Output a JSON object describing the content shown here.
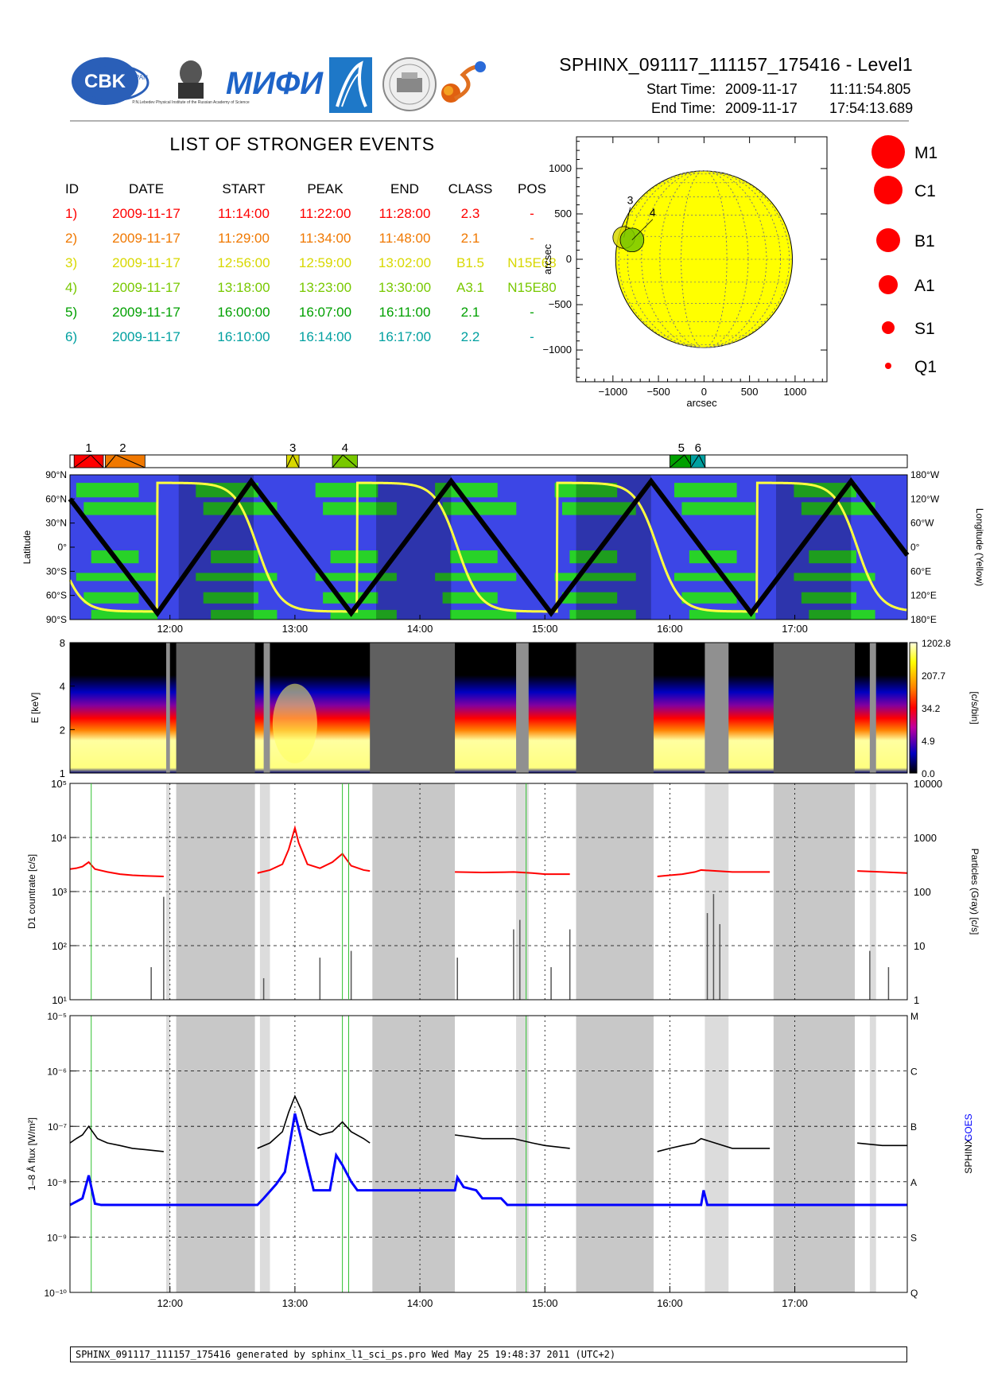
{
  "header": {
    "logos": [
      {
        "name": "cbk-logo",
        "text": "CBK",
        "sub": "PAN"
      },
      {
        "name": "lebedev-logo",
        "text": "P.N.Lebedev Physical Institute of the Russian Academy of Science"
      },
      {
        "name": "mifi-logo",
        "text": "МИФИ"
      },
      {
        "name": "roscosmos-logo",
        "text": ""
      },
      {
        "name": "seal-logo",
        "text": ""
      },
      {
        "name": "sun-swirl-logo",
        "text": ""
      }
    ],
    "title": "SPHINX_091117_111157_175416 - Level1",
    "start_label": "Start Time:",
    "start_date": "2009-11-17",
    "start_time": "11:11:54.805",
    "end_label": "End Time:",
    "end_date": "2009-11-17",
    "end_time": "17:54:13.689"
  },
  "events": {
    "title": "LIST OF STRONGER EVENTS",
    "columns": [
      "ID",
      "DATE",
      "START",
      "PEAK",
      "END",
      "CLASS",
      "POS"
    ],
    "rows": [
      {
        "id": "1)",
        "date": "2009-11-17",
        "start": "11:14:00",
        "peak": "11:22:00",
        "end": "11:28:00",
        "cls": "2.3",
        "pos": "-",
        "color": "#ff0000"
      },
      {
        "id": "2)",
        "date": "2009-11-17",
        "start": "11:29:00",
        "peak": "11:34:00",
        "end": "11:48:00",
        "cls": "2.1",
        "pos": "-",
        "color": "#f07800"
      },
      {
        "id": "3)",
        "date": "2009-11-17",
        "start": "12:56:00",
        "peak": "12:59:00",
        "end": "13:02:00",
        "cls": "B1.5",
        "pos": "N15E68",
        "color": "#d8d800"
      },
      {
        "id": "4)",
        "date": "2009-11-17",
        "start": "13:18:00",
        "peak": "13:23:00",
        "end": "13:30:00",
        "cls": "A3.1",
        "pos": "N15E80",
        "color": "#78c800"
      },
      {
        "id": "5)",
        "date": "2009-11-17",
        "start": "16:00:00",
        "peak": "16:07:00",
        "end": "16:11:00",
        "cls": "2.1",
        "pos": "-",
        "color": "#00a000"
      },
      {
        "id": "6)",
        "date": "2009-11-17",
        "start": "16:10:00",
        "peak": "16:14:00",
        "end": "16:17:00",
        "cls": "2.2",
        "pos": "-",
        "color": "#00a0a0"
      }
    ]
  },
  "class_legend": [
    "M1",
    "C1",
    "B1",
    "A1",
    "S1",
    "Q1"
  ],
  "footer": {
    "text": "SPHINX_091117_111157_175416 generated by sphinx_l1_sci_ps.pro Wed May 25 19:48:37 2011 (UTC+2)"
  },
  "colors": {
    "ocean": "#3c46e6",
    "land": "#28d228",
    "sun_disk": "#ffff00",
    "sphinx_curve": "#000000",
    "goes_curve": "#0000ff",
    "d1_curve": "#ff0000",
    "gap_gray": "#c8c8c8",
    "gap_dark": "#606060"
  },
  "chart_data": [
    {
      "type": "scatter",
      "name": "solar-disk-map",
      "xlabel": "arcsec",
      "ylabel": "arcsec",
      "xlim": [
        -1400,
        1350
      ],
      "ylim": [
        -1350,
        1350
      ],
      "xticks": [
        -1000,
        -500,
        0,
        500,
        1000
      ],
      "yticks": [
        -1000,
        -500,
        0,
        500,
        1000
      ],
      "xtick_labels": [
        "−1000",
        "−500",
        "0",
        "500",
        "1000"
      ],
      "ytick_labels": [
        "−1000",
        "−500",
        "0",
        "500",
        "1000"
      ],
      "sun_radius_arcsec": 970,
      "events": [
        {
          "label": "3",
          "x": -880,
          "y": 240,
          "radius_arcsec": 120,
          "color": "#d8d800"
        },
        {
          "label": "4",
          "x": -860,
          "y": 230,
          "radius_arcsec": 130,
          "color": "#78c800"
        }
      ]
    },
    {
      "type": "table",
      "name": "event-timeline-bar",
      "time_range_utc": [
        11.2,
        17.9
      ],
      "events": [
        {
          "label": "1",
          "start": 11.233,
          "peak": 11.367,
          "end": 11.467,
          "color": "#ff0000"
        },
        {
          "label": "2",
          "start": 11.483,
          "peak": 11.567,
          "end": 11.8,
          "color": "#f07800"
        },
        {
          "label": "3",
          "start": 12.933,
          "peak": 12.983,
          "end": 13.033,
          "color": "#d8d800"
        },
        {
          "label": "4",
          "start": 13.3,
          "peak": 13.383,
          "end": 13.5,
          "color": "#78c800"
        },
        {
          "label": "5",
          "start": 16.0,
          "peak": 16.117,
          "end": 16.183,
          "color": "#00a000"
        },
        {
          "label": "6",
          "start": 16.167,
          "peak": 16.233,
          "end": 16.283,
          "color": "#00a0a0"
        }
      ]
    },
    {
      "type": "line",
      "name": "orbit-track",
      "xlabel": "",
      "ylabel": "Latitude",
      "y2label": "Longitude (Yellow)",
      "x_range_utc": [
        11.2,
        17.9
      ],
      "x_ticks": [
        "12:00",
        "13:00",
        "14:00",
        "15:00",
        "16:00",
        "17:00"
      ],
      "ylim": [
        -90,
        90
      ],
      "y_ticks": [
        "90°S",
        "60°S",
        "30°S",
        "0°",
        "30°N",
        "60°N",
        "90°N"
      ],
      "y2_ticks": [
        "180°E",
        "120°E",
        "60°E",
        "0°",
        "60°W",
        "120°W",
        "180°W"
      ],
      "latitude_turnpoints": {
        "t": [
          11.2,
          11.9,
          12.65,
          13.45,
          14.25,
          15.05,
          15.85,
          16.65,
          17.45,
          17.9
        ],
        "lat": [
          60,
          -82,
          82,
          -82,
          82,
          -82,
          82,
          -82,
          82,
          -10
        ]
      },
      "shadow_intervals": [
        [
          12.07,
          12.67
        ],
        [
          13.65,
          14.25
        ],
        [
          15.25,
          15.85
        ],
        [
          16.85,
          17.45
        ]
      ]
    },
    {
      "type": "heatmap",
      "name": "spectrogram",
      "xlabel": "",
      "ylabel": "E [keV]",
      "colorbar_label": "[c/s/bin]",
      "colorbar_ticks": [
        "0.0",
        "4.9",
        "34.2",
        "207.7",
        "1202.8"
      ],
      "y_ticks": [
        "1",
        "2",
        "4",
        "8"
      ],
      "ylim_kev": [
        1,
        8
      ],
      "data_gaps_utc": [
        [
          11.97,
          12.0
        ],
        [
          12.05,
          12.68
        ],
        [
          12.75,
          12.8
        ],
        [
          13.6,
          14.28
        ],
        [
          14.77,
          14.87
        ],
        [
          15.25,
          15.87
        ],
        [
          16.28,
          16.47
        ],
        [
          16.83,
          17.48
        ],
        [
          17.6,
          17.65
        ]
      ]
    },
    {
      "type": "line",
      "name": "d1-countrate",
      "xlabel": "",
      "ylabel": "D1 countrate [c/s]",
      "y2label": "Particles (Gray) [c/s]",
      "yscale": "log",
      "ylim": [
        10,
        100000
      ],
      "y_ticks": [
        "10¹",
        "10²",
        "10³",
        "10⁴",
        "10⁵"
      ],
      "y2lim": [
        1,
        10000
      ],
      "y2_ticks": [
        "1",
        "10",
        "100",
        "1000",
        "10000"
      ],
      "series": [
        {
          "name": "D1 countrate",
          "color": "#ff0000",
          "x": [
            11.2,
            11.25,
            11.3,
            11.35,
            11.4,
            11.5,
            11.6,
            11.7,
            11.8,
            11.95,
            12.7,
            12.8,
            12.9,
            12.95,
            13.0,
            13.03,
            13.1,
            13.2,
            13.3,
            13.38,
            13.45,
            13.55,
            13.6,
            14.28,
            14.5,
            14.75,
            14.9,
            15.0,
            15.2,
            15.9,
            16.0,
            16.1,
            16.2,
            16.25,
            16.5,
            16.6,
            16.8,
            17.5,
            17.7,
            17.9
          ],
          "y": [
            2600,
            2700,
            2900,
            3500,
            2600,
            2300,
            2100,
            2000,
            1950,
            1900,
            2200,
            2500,
            3200,
            6000,
            15000,
            8000,
            3200,
            2700,
            3500,
            5000,
            3000,
            2500,
            2400,
            2300,
            2250,
            2300,
            2200,
            2100,
            2100,
            1900,
            2000,
            2100,
            2300,
            2500,
            2300,
            2300,
            2300,
            2400,
            2300,
            2200
          ]
        }
      ]
    },
    {
      "type": "line",
      "name": "xray-flux",
      "xlabel": "",
      "ylabel": "1–8 Å flux [W/m²]",
      "yscale": "log",
      "ylim": [
        1e-10,
        1e-05
      ],
      "y_ticks": [
        "10⁻¹⁰",
        "10⁻⁹",
        "10⁻⁸",
        "10⁻⁷",
        "10⁻⁶",
        "10⁻⁵"
      ],
      "class_ticks": [
        "Q",
        "S",
        "A",
        "B",
        "C",
        "M"
      ],
      "x_ticks": [
        "12:00",
        "13:00",
        "14:00",
        "15:00",
        "16:00",
        "17:00"
      ],
      "legend": [
        "SPHINX",
        "GOES"
      ],
      "series": [
        {
          "name": "SPHINX",
          "color": "#000000",
          "x": [
            11.2,
            11.25,
            11.3,
            11.35,
            11.42,
            11.5,
            11.6,
            11.7,
            11.8,
            11.95,
            12.7,
            12.8,
            12.9,
            12.95,
            13.0,
            13.05,
            13.1,
            13.2,
            13.3,
            13.38,
            13.45,
            13.55,
            13.6,
            14.28,
            14.5,
            14.75,
            14.9,
            15.0,
            15.2,
            15.9,
            16.0,
            16.1,
            16.2,
            16.25,
            16.5,
            16.6,
            16.8,
            17.5,
            17.7,
            17.9
          ],
          "y": [
            5e-08,
            6e-08,
            7e-08,
            1e-07,
            6e-08,
            5e-08,
            4.5e-08,
            4e-08,
            3.8e-08,
            3.5e-08,
            4e-08,
            5e-08,
            8e-08,
            1.8e-07,
            3.5e-07,
            2e-07,
            9e-08,
            7e-08,
            8e-08,
            1.2e-07,
            8e-08,
            6e-08,
            5e-08,
            7e-08,
            6e-08,
            6e-08,
            5e-08,
            4.5e-08,
            4e-08,
            3.5e-08,
            4e-08,
            4.5e-08,
            5e-08,
            6e-08,
            4e-08,
            4e-08,
            4e-08,
            5e-08,
            4.5e-08,
            4.5e-08
          ]
        },
        {
          "name": "GOES",
          "color": "#0000ff",
          "x": [
            11.2,
            11.3,
            11.35,
            11.4,
            11.45,
            11.5,
            12.7,
            12.75,
            12.85,
            12.92,
            12.96,
            13.0,
            13.05,
            13.1,
            13.15,
            13.28,
            13.33,
            13.38,
            13.45,
            13.5,
            14.28,
            14.3,
            14.35,
            14.45,
            14.5,
            14.65,
            14.7,
            16.25,
            16.27,
            16.3,
            17.9
          ],
          "y": [
            3.8e-09,
            5e-09,
            1.3e-08,
            4e-09,
            3.8e-09,
            3.8e-09,
            3.8e-09,
            5e-09,
            9e-09,
            1.5e-08,
            5e-08,
            1.7e-07,
            6e-08,
            2e-08,
            7e-09,
            7e-09,
            3e-08,
            2e-08,
            1e-08,
            7e-09,
            7e-09,
            1.2e-08,
            8e-09,
            7e-09,
            5e-09,
            5e-09,
            3.8e-09,
            3.8e-09,
            7e-09,
            3.8e-09,
            3.8e-09
          ]
        }
      ]
    }
  ]
}
